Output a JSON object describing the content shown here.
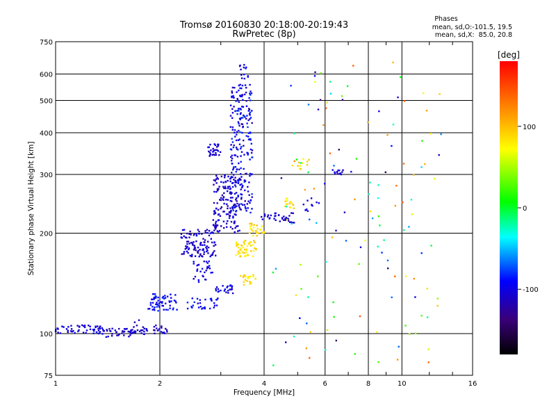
{
  "chart_data": {
    "type": "scatter",
    "title": "Tromsø 20160830 20:18:00-20:19:43",
    "subtitle": "RwPretec (8p)",
    "xlabel": "Frequency [MHz]",
    "ylabel": "Stationary phase Virtual Height [km]",
    "x_scale": "log2",
    "y_scale": "log",
    "xlim": [
      1,
      16
    ],
    "ylim": [
      75,
      750
    ],
    "x_ticks": [
      1,
      2,
      4,
      6,
      8,
      10,
      16
    ],
    "x_tick_labels": [
      "1",
      "2",
      "4",
      "6",
      "8",
      "10",
      "16"
    ],
    "y_ticks": [
      75,
      100,
      200,
      300,
      400,
      500,
      600,
      750
    ],
    "y_tick_labels": [
      "75",
      "100",
      "200",
      "300",
      "400",
      "500",
      "600",
      "750"
    ],
    "grid": true,
    "phases_box": {
      "title": "Phases",
      "line1": "mean, sd,O:-101.5, 19.5",
      "line2": "mean, sd,X:  85.0, 20.8"
    },
    "colorbar": {
      "label": "[deg]",
      "range": [
        -180,
        180
      ],
      "tick_values": [
        100,
        0,
        -100
      ],
      "tick_labels": [
        "100",
        "0",
        "-100"
      ]
    },
    "point_groups": [
      {
        "f": [
          1.0,
          1.35
        ],
        "h": [
          100,
          106
        ],
        "phase": [
          -115,
          -90
        ],
        "n": 50
      },
      {
        "f": [
          1.35,
          1.85
        ],
        "h": [
          97,
          104
        ],
        "phase": [
          -120,
          -95
        ],
        "n": 55
      },
      {
        "f": [
          1.6,
          1.9
        ],
        "h": [
          100,
          110
        ],
        "phase": [
          -120,
          -95
        ],
        "n": 12
      },
      {
        "f": [
          1.88,
          2.1
        ],
        "h": [
          100,
          106
        ],
        "phase": [
          -125,
          -95
        ],
        "n": 18
      },
      {
        "f": [
          1.85,
          2.25
        ],
        "h": [
          117,
          132
        ],
        "phase": [
          -105,
          -80
        ],
        "n": 60
      },
      {
        "f": [
          2.4,
          2.95
        ],
        "h": [
          118,
          128
        ],
        "phase": [
          -105,
          -80
        ],
        "n": 30
      },
      {
        "f": [
          2.3,
          2.9
        ],
        "h": [
          170,
          205
        ],
        "phase": [
          -125,
          -90
        ],
        "n": 110
      },
      {
        "f": [
          2.5,
          2.85
        ],
        "h": [
          140,
          165
        ],
        "phase": [
          -115,
          -85
        ],
        "n": 30
      },
      {
        "f": [
          2.85,
          3.4
        ],
        "h": [
          200,
          300
        ],
        "phase": [
          -125,
          -90
        ],
        "n": 160
      },
      {
        "f": [
          2.75,
          3.0
        ],
        "h": [
          340,
          370
        ],
        "phase": [
          -120,
          -90
        ],
        "n": 30
      },
      {
        "f": [
          2.9,
          3.25
        ],
        "h": [
          132,
          140
        ],
        "phase": [
          -115,
          -85
        ],
        "n": 25
      },
      {
        "f": [
          3.2,
          3.7
        ],
        "h": [
          230,
          560
        ],
        "phase": [
          -125,
          -75
        ],
        "n": 230
      },
      {
        "f": [
          3.35,
          3.6
        ],
        "h": [
          580,
          640
        ],
        "phase": [
          -110,
          -80
        ],
        "n": 14
      },
      {
        "f": [
          3.3,
          3.8
        ],
        "h": [
          170,
          190
        ],
        "phase": [
          70,
          100
        ],
        "n": 50
      },
      {
        "f": [
          3.4,
          3.8
        ],
        "h": [
          140,
          150
        ],
        "phase": [
          70,
          100
        ],
        "n": 22
      },
      {
        "f": [
          3.6,
          4.0
        ],
        "h": [
          195,
          215
        ],
        "phase": [
          70,
          100
        ],
        "n": 25
      },
      {
        "f": [
          3.9,
          4.3
        ],
        "h": [
          220,
          228
        ],
        "phase": [
          -120,
          -95
        ],
        "n": 12
      },
      {
        "f": [
          4.3,
          4.9
        ],
        "h": [
          215,
          230
        ],
        "phase": [
          -120,
          -95
        ],
        "n": 25
      },
      {
        "f": [
          4.6,
          4.9
        ],
        "h": [
          235,
          255
        ],
        "phase": [
          70,
          100
        ],
        "n": 15
      },
      {
        "f": [
          5.0,
          5.8
        ],
        "h": [
          230,
          260
        ],
        "phase": [
          -115,
          -90
        ],
        "n": 12
      },
      {
        "f": [
          5.0,
          5.5
        ],
        "h": [
          310,
          345
        ],
        "phase": [
          70,
          100
        ],
        "n": 10
      },
      {
        "f": [
          6.3,
          7.3
        ],
        "h": [
          300,
          310
        ],
        "phase": [
          -120,
          -90
        ],
        "n": 14
      },
      {
        "f": [
          4.2,
          13.0
        ],
        "h": [
          80,
          650
        ],
        "phase": [
          -150,
          150
        ],
        "n": 130
      }
    ]
  }
}
